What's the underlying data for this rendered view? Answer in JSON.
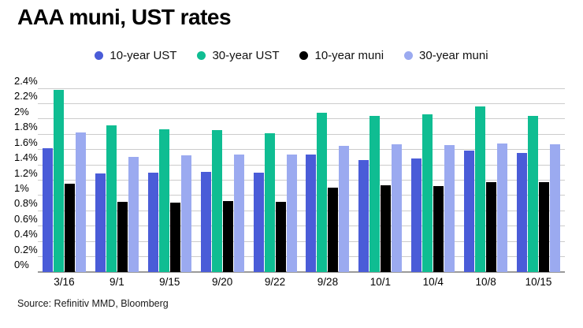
{
  "title": "AAA muni, UST rates",
  "source": "Source: Refinitiv MMD, Bloomberg",
  "colors": {
    "ust10": "#4a5cd8",
    "ust30": "#0fbd92",
    "muni10": "#000000",
    "muni30": "#9baaf0",
    "gridline": "#cccccc",
    "axis": "#9a9a9a"
  },
  "chart_data": {
    "type": "bar",
    "title": "AAA muni, UST rates",
    "xlabel": "",
    "ylabel": "",
    "ylim": [
      0,
      2.4
    ],
    "grid": true,
    "legend_position": "top-center",
    "categories": [
      "3/16",
      "9/1",
      "9/15",
      "9/20",
      "9/22",
      "9/28",
      "10/1",
      "10/4",
      "10/8",
      "10/15"
    ],
    "y_ticks": {
      "values": [
        0,
        0.2,
        0.4,
        0.6,
        0.8,
        1.0,
        1.2,
        1.4,
        1.6,
        1.8,
        2.0,
        2.2,
        2.4
      ],
      "labels": [
        "0%",
        "0.2%",
        "0.4%",
        "0.6%",
        "0.8%",
        "1%",
        "1.2%",
        "1.4%",
        "1.6%",
        "1.8%",
        "2%",
        "2.2%",
        "2.4%"
      ]
    },
    "series": [
      {
        "name": "10-year UST",
        "color_key": "ust10",
        "values": [
          1.62,
          1.29,
          1.3,
          1.31,
          1.3,
          1.53,
          1.46,
          1.48,
          1.59,
          1.56
        ]
      },
      {
        "name": "30-year UST",
        "color_key": "ust30",
        "values": [
          2.38,
          1.92,
          1.86,
          1.85,
          1.81,
          2.08,
          2.04,
          2.06,
          2.16,
          2.04
        ]
      },
      {
        "name": "10-year muni",
        "color_key": "muni10",
        "values": [
          1.15,
          0.92,
          0.91,
          0.93,
          0.92,
          1.1,
          1.13,
          1.12,
          1.17,
          1.17
        ]
      },
      {
        "name": "30-year muni",
        "color_key": "muni30",
        "values": [
          1.82,
          1.5,
          1.52,
          1.53,
          1.53,
          1.65,
          1.67,
          1.66,
          1.68,
          1.67
        ]
      }
    ]
  }
}
